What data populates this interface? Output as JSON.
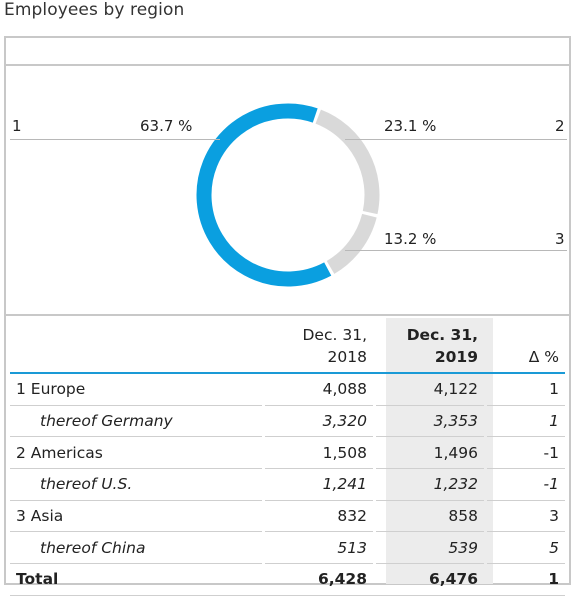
{
  "title": "Employees by region",
  "colors": {
    "europe": "#0a9fe0",
    "other": "#d9d9d9"
  },
  "chart_data": {
    "type": "pie",
    "categories": [
      "1",
      "2",
      "3"
    ],
    "values": [
      63.7,
      23.1,
      13.2
    ],
    "labels": [
      "63.7 %",
      "23.1 %",
      "13.2 %"
    ],
    "colors": [
      "#0a9fe0",
      "#d9d9d9",
      "#d9d9d9"
    ]
  },
  "legend": {
    "n1": "1",
    "n2": "2",
    "n3": "3"
  },
  "table": {
    "headers": {
      "col1": [
        "Dec. 31,",
        "2018"
      ],
      "col2": [
        "Dec. 31,",
        "2019"
      ],
      "col3": "Δ %"
    },
    "rows": [
      {
        "label": "1 Europe",
        "v2018": "4,088",
        "v2019": "4,122",
        "delta": "1",
        "style": "normal"
      },
      {
        "label": "thereof Germany",
        "v2018": "3,320",
        "v2019": "3,353",
        "delta": "1",
        "style": "italic"
      },
      {
        "label": "2 Americas",
        "v2018": "1,508",
        "v2019": "1,496",
        "delta": "-1",
        "style": "normal"
      },
      {
        "label": "thereof U.S.",
        "v2018": "1,241",
        "v2019": "1,232",
        "delta": "-1",
        "style": "italic"
      },
      {
        "label": "3 Asia",
        "v2018": "832",
        "v2019": "858",
        "delta": "3",
        "style": "normal"
      },
      {
        "label": "thereof China",
        "v2018": "513",
        "v2019": "539",
        "delta": "5",
        "style": "italic"
      },
      {
        "label": "Total",
        "v2018": "6,428",
        "v2019": "6,476",
        "delta": "1",
        "style": "total"
      }
    ]
  }
}
